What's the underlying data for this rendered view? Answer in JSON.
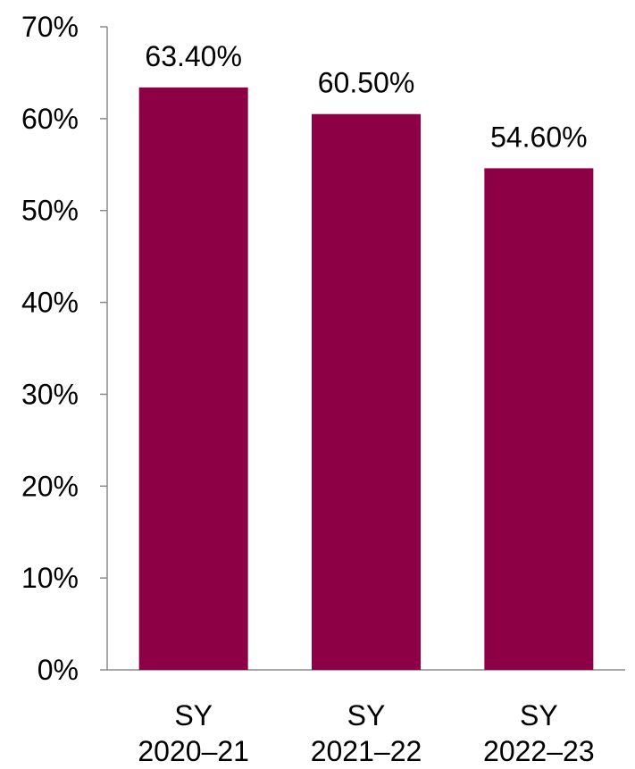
{
  "chart_data": {
    "type": "bar",
    "categories": [
      [
        "SY",
        "2020–21"
      ],
      [
        "SY",
        "2021–22"
      ],
      [
        "SY",
        "2022–23"
      ]
    ],
    "values": [
      63.4,
      60.5,
      54.6
    ],
    "data_labels": [
      "63.40%",
      "60.50%",
      "54.60%"
    ],
    "ylim": [
      0,
      70
    ],
    "y_ticks": [
      0,
      10,
      20,
      30,
      40,
      50,
      60,
      70
    ],
    "y_tick_labels": [
      "0%",
      "10%",
      "20%",
      "30%",
      "40%",
      "50%",
      "60%",
      "70%"
    ],
    "grid": false,
    "legend": "none",
    "bar_color": "#8e0046",
    "axis_color": "#8c8c8c"
  }
}
